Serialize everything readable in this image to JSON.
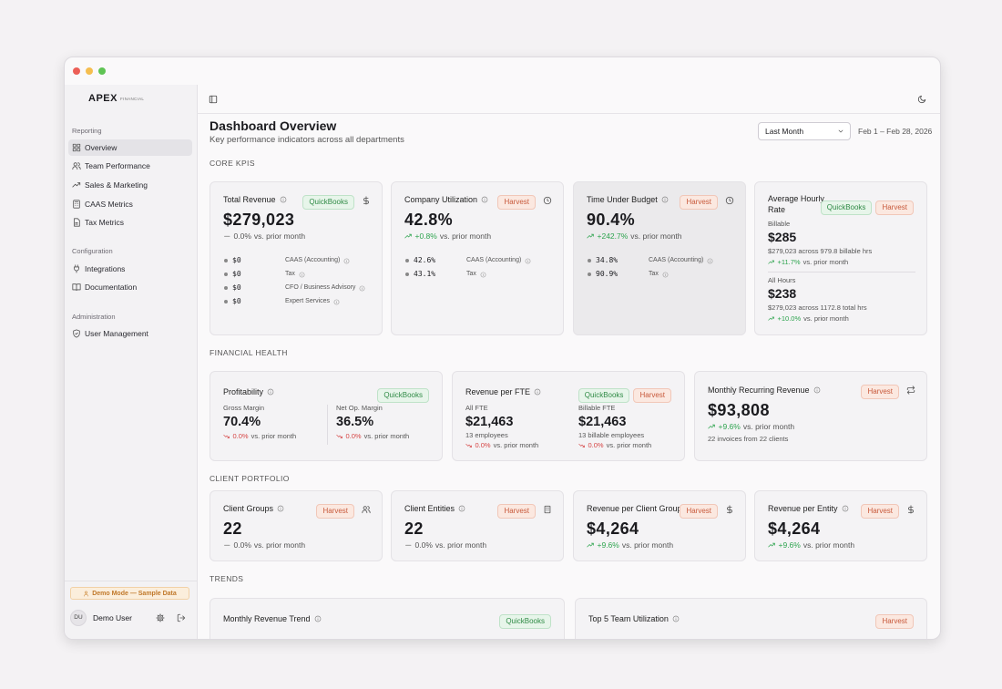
{
  "brand": {
    "name": "APEX",
    "sub": "FINANCIAL"
  },
  "sidebar": {
    "sections": [
      {
        "heading": "Reporting",
        "items": [
          "Overview",
          "Team Performance",
          "Sales & Marketing",
          "CAAS Metrics",
          "Tax Metrics"
        ]
      },
      {
        "heading": "Configuration",
        "items": [
          "Integrations",
          "Documentation"
        ]
      },
      {
        "heading": "Administration",
        "items": [
          "User Management"
        ]
      }
    ],
    "demo": "Demo Mode — Sample Data",
    "user": {
      "initials": "DU",
      "name": "Demo User"
    }
  },
  "header": {
    "title": "Dashboard Overview",
    "subtitle": "Key performance indicators across all departments",
    "period": "Last Month",
    "range": "Feb 1 – Feb 28, 2026"
  },
  "sections": [
    {
      "label": "CORE KPIS",
      "cards": [
        {
          "title": "Total Revenue",
          "badges": [
            "QuickBooks"
          ],
          "value": "$279,023",
          "change": {
            "value": "0.0%",
            "text": "vs. prior month",
            "trend": "flat"
          },
          "rows": [
            {
              "value": "$0",
              "label": "CAAS (Accounting)"
            },
            {
              "value": "$0",
              "label": "Tax"
            },
            {
              "value": "$0",
              "label": "CFO / Business Advisory"
            },
            {
              "value": "$0",
              "label": "Expert Services"
            }
          ]
        },
        {
          "title": "Company Utilization",
          "badges": [
            "Harvest"
          ],
          "value": "42.8%",
          "change": {
            "value": "+0.8%",
            "text": "vs. prior month",
            "trend": "up"
          },
          "rows": [
            {
              "value": "42.6%",
              "label": "CAAS (Accounting)"
            },
            {
              "value": "43.1%",
              "label": "Tax"
            }
          ]
        },
        {
          "title": "Time Under Budget",
          "badges": [
            "Harvest"
          ],
          "value": "90.4%",
          "change": {
            "value": "+242.7%",
            "text": "vs. prior month",
            "trend": "up"
          },
          "rows": [
            {
              "value": "34.8%",
              "label": "CAAS (Accounting)"
            },
            {
              "value": "90.9%",
              "label": "Tax"
            }
          ]
        },
        {
          "title": "Average Hourly Rate",
          "badges": [
            "QuickBooks",
            "Harvest"
          ],
          "groups": [
            {
              "label": "Billable",
              "value": "$285",
              "note": "$279,023 across 979.8 billable hrs",
              "change": {
                "value": "+11.7%",
                "text": "vs. prior month",
                "trend": "up"
              }
            },
            {
              "label": "All Hours",
              "value": "$238",
              "note": "$279,023 across 1172.8 total hrs",
              "change": {
                "value": "+10.0%",
                "text": "vs. prior month",
                "trend": "up"
              }
            }
          ]
        }
      ]
    },
    {
      "label": "FINANCIAL HEALTH",
      "cards": [
        {
          "title": "Profitability",
          "badges": [
            "QuickBooks"
          ],
          "columns": [
            {
              "label": "Gross Margin",
              "value": "70.4%",
              "change": {
                "value": "0.0%",
                "text": "vs. prior month",
                "trend": "down"
              }
            },
            {
              "label": "Net Op. Margin",
              "value": "36.5%",
              "change": {
                "value": "0.0%",
                "text": "vs. prior month",
                "trend": "down"
              }
            }
          ]
        },
        {
          "title": "Revenue per FTE",
          "badges": [
            "QuickBooks",
            "Harvest"
          ],
          "columns": [
            {
              "label": "All FTE",
              "value": "$21,463",
              "note": "13 employees",
              "change": {
                "value": "0.0%",
                "text": "vs. prior month",
                "trend": "down"
              }
            },
            {
              "label": "Billable FTE",
              "value": "$21,463",
              "note": "13 billable employees",
              "change": {
                "value": "0.0%",
                "text": "vs. prior month",
                "trend": "down"
              }
            }
          ]
        },
        {
          "title": "Monthly Recurring Revenue",
          "badges": [
            "Harvest"
          ],
          "value": "$93,808",
          "change": {
            "value": "+9.6%",
            "text": "vs. prior month",
            "trend": "up"
          },
          "note": "22 invoices from 22 clients"
        }
      ]
    },
    {
      "label": "CLIENT PORTFOLIO",
      "cards": [
        {
          "title": "Client Groups",
          "badges": [
            "Harvest"
          ],
          "value": "22",
          "change": {
            "value": "0.0%",
            "text": "vs. prior month",
            "trend": "flat"
          }
        },
        {
          "title": "Client Entities",
          "badges": [
            "Harvest"
          ],
          "value": "22",
          "change": {
            "value": "0.0%",
            "text": "vs. prior month",
            "trend": "flat"
          }
        },
        {
          "title": "Revenue per Client Group",
          "badges": [
            "Harvest"
          ],
          "value": "$4,264",
          "change": {
            "value": "+9.6%",
            "text": "vs. prior month",
            "trend": "up"
          }
        },
        {
          "title": "Revenue per Entity",
          "badges": [
            "Harvest"
          ],
          "value": "$4,264",
          "change": {
            "value": "+9.6%",
            "text": "vs. prior month",
            "trend": "up"
          }
        }
      ]
    },
    {
      "label": "TRENDS",
      "cards": [
        {
          "title": "Monthly Revenue Trend",
          "badges": [
            "QuickBooks"
          ]
        },
        {
          "title": "Top 5 Team Utilization",
          "badges": [
            "Harvest"
          ]
        }
      ]
    }
  ]
}
